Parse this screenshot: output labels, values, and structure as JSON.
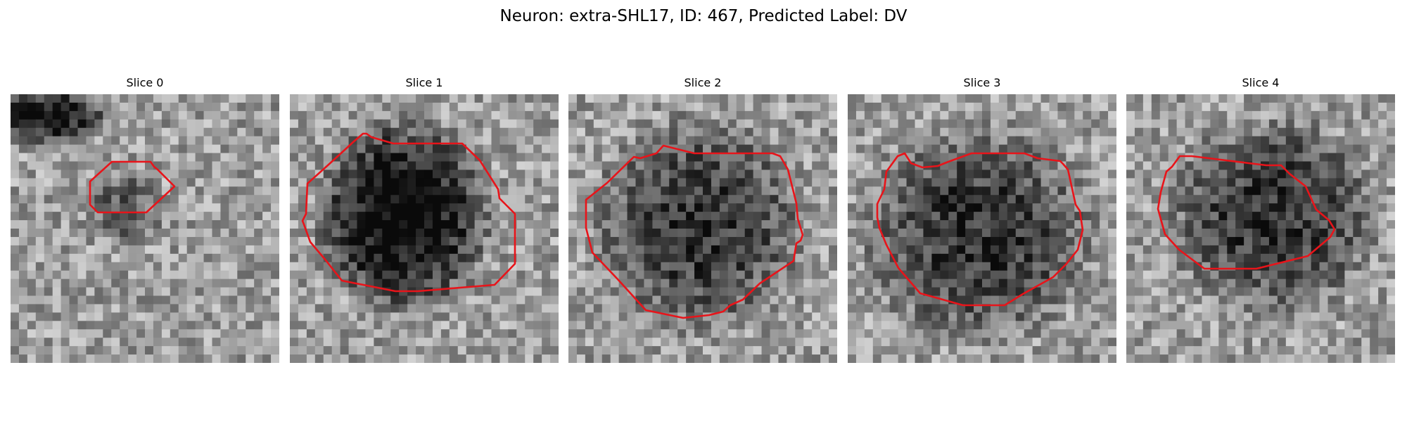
{
  "suptitle": "Neuron: extra-SHL17, ID: 467, Predicted Label: DV",
  "outline_color": "#e8141a",
  "colormap": "gray",
  "slices": [
    {
      "title": "Slice 0"
    },
    {
      "title": "Slice 1"
    },
    {
      "title": "Slice 2"
    },
    {
      "title": "Slice 3"
    },
    {
      "title": "Slice 4"
    }
  ]
}
